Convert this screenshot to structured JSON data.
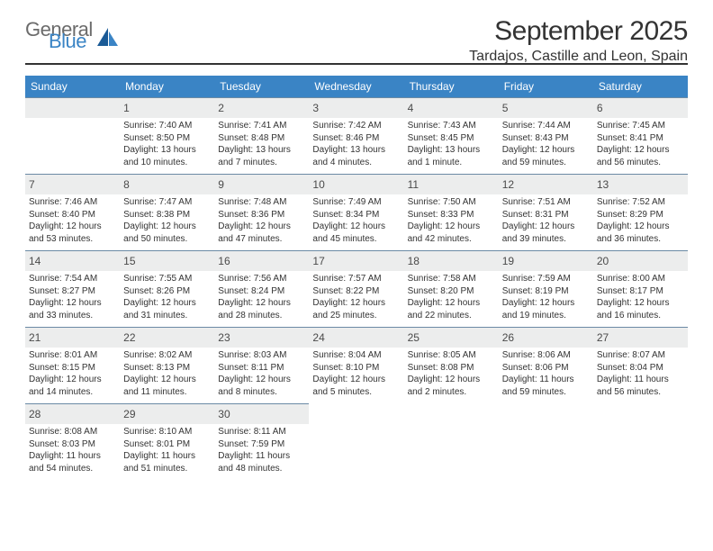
{
  "logo": {
    "line1": "General",
    "line2": "Blue"
  },
  "title": "September 2025",
  "location": "Tardajos, Castille and Leon, Spain",
  "colors": {
    "header_bg": "#3a84c5",
    "header_text": "#ffffff",
    "daynum_bg": "#eceded",
    "cell_border": "#6b8aa5",
    "text": "#333333",
    "logo_gray": "#6b6b6b",
    "logo_blue": "#3a84c5"
  },
  "day_headers": [
    "Sunday",
    "Monday",
    "Tuesday",
    "Wednesday",
    "Thursday",
    "Friday",
    "Saturday"
  ],
  "leading_blanks": 1,
  "days": [
    {
      "n": "1",
      "sr": "7:40 AM",
      "ss": "8:50 PM",
      "dl": "13 hours and 10 minutes."
    },
    {
      "n": "2",
      "sr": "7:41 AM",
      "ss": "8:48 PM",
      "dl": "13 hours and 7 minutes."
    },
    {
      "n": "3",
      "sr": "7:42 AM",
      "ss": "8:46 PM",
      "dl": "13 hours and 4 minutes."
    },
    {
      "n": "4",
      "sr": "7:43 AM",
      "ss": "8:45 PM",
      "dl": "13 hours and 1 minute."
    },
    {
      "n": "5",
      "sr": "7:44 AM",
      "ss": "8:43 PM",
      "dl": "12 hours and 59 minutes."
    },
    {
      "n": "6",
      "sr": "7:45 AM",
      "ss": "8:41 PM",
      "dl": "12 hours and 56 minutes."
    },
    {
      "n": "7",
      "sr": "7:46 AM",
      "ss": "8:40 PM",
      "dl": "12 hours and 53 minutes."
    },
    {
      "n": "8",
      "sr": "7:47 AM",
      "ss": "8:38 PM",
      "dl": "12 hours and 50 minutes."
    },
    {
      "n": "9",
      "sr": "7:48 AM",
      "ss": "8:36 PM",
      "dl": "12 hours and 47 minutes."
    },
    {
      "n": "10",
      "sr": "7:49 AM",
      "ss": "8:34 PM",
      "dl": "12 hours and 45 minutes."
    },
    {
      "n": "11",
      "sr": "7:50 AM",
      "ss": "8:33 PM",
      "dl": "12 hours and 42 minutes."
    },
    {
      "n": "12",
      "sr": "7:51 AM",
      "ss": "8:31 PM",
      "dl": "12 hours and 39 minutes."
    },
    {
      "n": "13",
      "sr": "7:52 AM",
      "ss": "8:29 PM",
      "dl": "12 hours and 36 minutes."
    },
    {
      "n": "14",
      "sr": "7:54 AM",
      "ss": "8:27 PM",
      "dl": "12 hours and 33 minutes."
    },
    {
      "n": "15",
      "sr": "7:55 AM",
      "ss": "8:26 PM",
      "dl": "12 hours and 31 minutes."
    },
    {
      "n": "16",
      "sr": "7:56 AM",
      "ss": "8:24 PM",
      "dl": "12 hours and 28 minutes."
    },
    {
      "n": "17",
      "sr": "7:57 AM",
      "ss": "8:22 PM",
      "dl": "12 hours and 25 minutes."
    },
    {
      "n": "18",
      "sr": "7:58 AM",
      "ss": "8:20 PM",
      "dl": "12 hours and 22 minutes."
    },
    {
      "n": "19",
      "sr": "7:59 AM",
      "ss": "8:19 PM",
      "dl": "12 hours and 19 minutes."
    },
    {
      "n": "20",
      "sr": "8:00 AM",
      "ss": "8:17 PM",
      "dl": "12 hours and 16 minutes."
    },
    {
      "n": "21",
      "sr": "8:01 AM",
      "ss": "8:15 PM",
      "dl": "12 hours and 14 minutes."
    },
    {
      "n": "22",
      "sr": "8:02 AM",
      "ss": "8:13 PM",
      "dl": "12 hours and 11 minutes."
    },
    {
      "n": "23",
      "sr": "8:03 AM",
      "ss": "8:11 PM",
      "dl": "12 hours and 8 minutes."
    },
    {
      "n": "24",
      "sr": "8:04 AM",
      "ss": "8:10 PM",
      "dl": "12 hours and 5 minutes."
    },
    {
      "n": "25",
      "sr": "8:05 AM",
      "ss": "8:08 PM",
      "dl": "12 hours and 2 minutes."
    },
    {
      "n": "26",
      "sr": "8:06 AM",
      "ss": "8:06 PM",
      "dl": "11 hours and 59 minutes."
    },
    {
      "n": "27",
      "sr": "8:07 AM",
      "ss": "8:04 PM",
      "dl": "11 hours and 56 minutes."
    },
    {
      "n": "28",
      "sr": "8:08 AM",
      "ss": "8:03 PM",
      "dl": "11 hours and 54 minutes."
    },
    {
      "n": "29",
      "sr": "8:10 AM",
      "ss": "8:01 PM",
      "dl": "11 hours and 51 minutes."
    },
    {
      "n": "30",
      "sr": "8:11 AM",
      "ss": "7:59 PM",
      "dl": "11 hours and 48 minutes."
    }
  ],
  "labels": {
    "sunrise": "Sunrise:",
    "sunset": "Sunset:",
    "daylight": "Daylight:"
  }
}
